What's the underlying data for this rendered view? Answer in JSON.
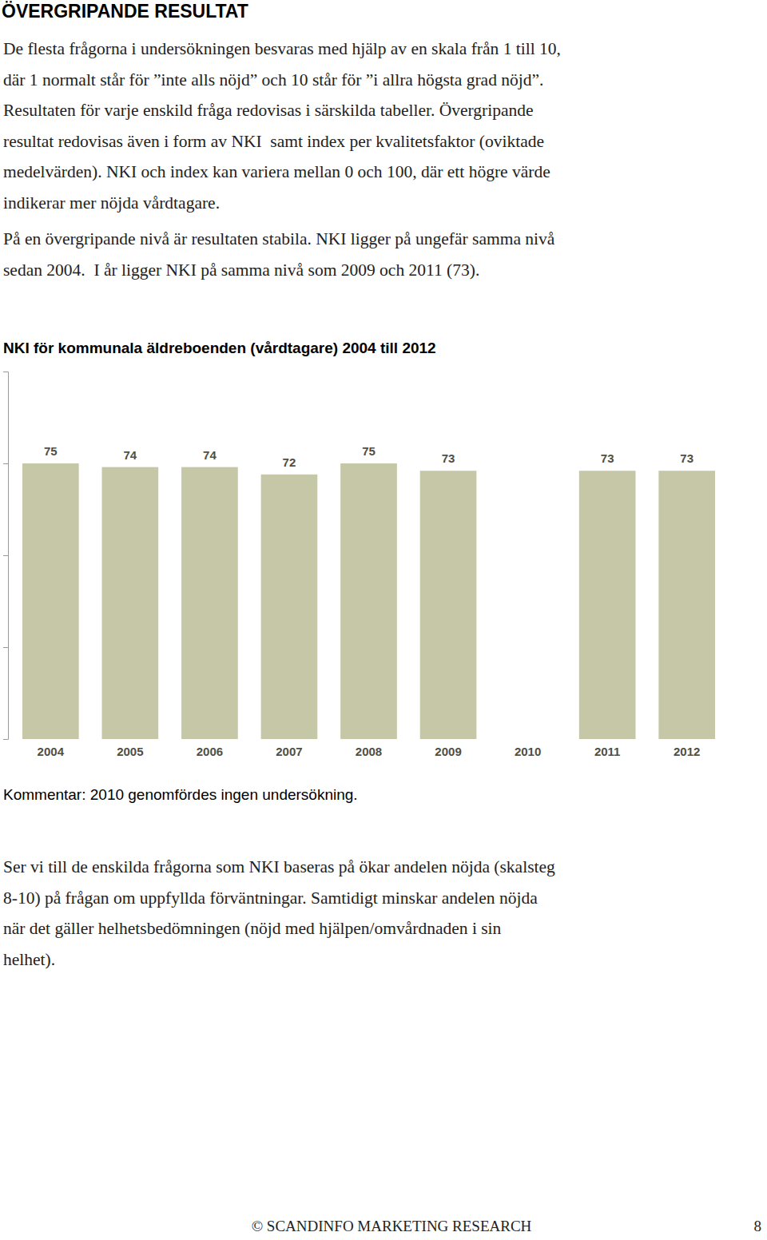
{
  "document": {
    "heading": "ÖVERGRIPANDE RESULTAT",
    "paragraphs": [
      [
        "De flesta frågorna i undersökningen besvaras med hjälp av en skala från 1 till 10,",
        "där 1 normalt står för ”inte alls nöjd” och 10 står för ”i allra högsta grad nöjd”.",
        "Resultaten för varje enskild fråga redovisas i särskilda tabeller. Övergripande",
        "resultat redovisas även i form av NKI  samt index per kvalitetsfaktor (oviktade",
        "medelvärden). NKI och index kan variera mellan 0 och 100, där ett högre värde",
        "indikerar mer nöjda vårdtagare."
      ],
      [
        "På en övergripande nivå är resultaten stabila. NKI ligger på ungefär samma nivå",
        "sedan 2004.  I år ligger NKI på samma nivå som 2009 och 2011 (73)."
      ]
    ],
    "note": "Kommentar: 2010 genomfördes ingen undersökning.",
    "closing": [
      "Ser vi till de enskilda frågorna som NKI baseras på ökar andelen nöjda (skalsteg",
      "8-10) på frågan om uppfyllda förväntningar. Samtidigt minskar andelen nöjda",
      "när det gäller helhetsbedömningen (nöjd med hjälpen/omvårdnaden i sin",
      "helhet)."
    ],
    "footer": "© SCANDINFO MARKETING RESEARCH",
    "page": "8"
  },
  "chart_data": {
    "type": "bar",
    "title": "NKI för kommunala äldreboenden (vårdtagare) 2004 till 2012",
    "categories": [
      "2004",
      "2005",
      "2006",
      "2007",
      "2008",
      "2009",
      "2010",
      "2011",
      "2012"
    ],
    "values": [
      75,
      74,
      74,
      72,
      75,
      73,
      null,
      73,
      73
    ],
    "color": "#c6c7a7",
    "ylim": [
      0,
      100
    ],
    "yticks": [
      0,
      25,
      50,
      75,
      100
    ],
    "grid": false,
    "data_labels": true,
    "tick_labels": "x"
  }
}
